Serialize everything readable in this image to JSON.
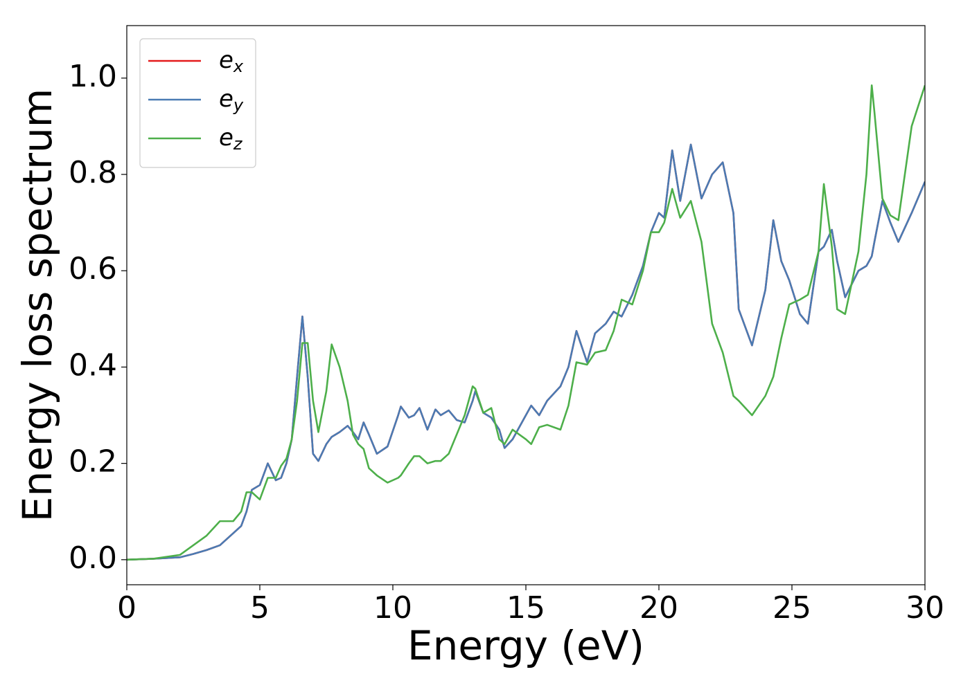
{
  "chart_data": {
    "type": "line",
    "xlabel": "Energy (eV)",
    "ylabel": "Energy loss spectrum",
    "x": [
      0,
      1,
      2,
      2.5,
      3,
      3.5,
      4,
      4.3,
      4.5,
      4.7,
      5.0,
      5.3,
      5.6,
      5.8,
      6.0,
      6.2,
      6.4,
      6.6,
      6.8,
      7.0,
      7.2,
      7.5,
      7.7,
      8.0,
      8.3,
      8.5,
      8.7,
      8.9,
      9.1,
      9.4,
      9.8,
      10.2,
      10.3,
      10.6,
      10.8,
      11.0,
      11.3,
      11.6,
      11.8,
      12.1,
      12.4,
      12.7,
      13.0,
      13.1,
      13.4,
      13.7,
      14.0,
      14.2,
      14.5,
      15.0,
      15.2,
      15.5,
      15.8,
      16.3,
      16.6,
      16.9,
      17.3,
      17.6,
      18.0,
      18.3,
      18.6,
      19.0,
      19.4,
      19.7,
      20.0,
      20.2,
      20.5,
      20.8,
      21.2,
      21.6,
      22.0,
      22.4,
      22.8,
      23.0,
      23.5,
      24.0,
      24.3,
      24.6,
      24.9,
      25.3,
      25.6,
      26.0,
      26.2,
      26.5,
      26.7,
      27.0,
      27.5,
      27.8,
      28.0,
      28.1,
      28.4,
      28.7,
      29.0,
      29.5,
      30.0
    ],
    "series": [
      {
        "name": "e_x",
        "color": "#e41a1c",
        "values": [
          0,
          0.002,
          0.005,
          0.012,
          0.02,
          0.03,
          0.055,
          0.07,
          0.1,
          0.145,
          0.155,
          0.2,
          0.165,
          0.17,
          0.2,
          0.25,
          0.38,
          0.505,
          0.38,
          0.22,
          0.205,
          0.24,
          0.255,
          0.265,
          0.278,
          0.265,
          0.25,
          0.285,
          0.26,
          0.22,
          0.235,
          0.3,
          0.318,
          0.295,
          0.3,
          0.315,
          0.27,
          0.312,
          0.3,
          0.31,
          0.29,
          0.285,
          0.33,
          0.35,
          0.305,
          0.295,
          0.27,
          0.232,
          0.25,
          0.3,
          0.32,
          0.3,
          0.33,
          0.36,
          0.4,
          0.475,
          0.41,
          0.47,
          0.49,
          0.515,
          0.505,
          0.55,
          0.61,
          0.68,
          0.72,
          0.71,
          0.85,
          0.745,
          0.862,
          0.75,
          0.8,
          0.825,
          0.72,
          0.52,
          0.445,
          0.56,
          0.705,
          0.62,
          0.58,
          0.51,
          0.49,
          0.64,
          0.65,
          0.685,
          0.62,
          0.545,
          0.6,
          0.61,
          0.63,
          0.66,
          0.745,
          0.7,
          0.66,
          0.72,
          0.785
        ]
      },
      {
        "name": "e_y",
        "color": "#4a7bb3",
        "values": [
          0,
          0.002,
          0.005,
          0.012,
          0.02,
          0.03,
          0.055,
          0.07,
          0.1,
          0.145,
          0.155,
          0.2,
          0.165,
          0.17,
          0.2,
          0.25,
          0.38,
          0.505,
          0.38,
          0.22,
          0.205,
          0.24,
          0.255,
          0.265,
          0.278,
          0.265,
          0.25,
          0.285,
          0.26,
          0.22,
          0.235,
          0.3,
          0.318,
          0.295,
          0.3,
          0.315,
          0.27,
          0.312,
          0.3,
          0.31,
          0.29,
          0.285,
          0.33,
          0.35,
          0.305,
          0.295,
          0.27,
          0.232,
          0.25,
          0.3,
          0.32,
          0.3,
          0.33,
          0.36,
          0.4,
          0.475,
          0.41,
          0.47,
          0.49,
          0.515,
          0.505,
          0.55,
          0.61,
          0.68,
          0.72,
          0.71,
          0.85,
          0.745,
          0.862,
          0.75,
          0.8,
          0.825,
          0.72,
          0.52,
          0.445,
          0.56,
          0.705,
          0.62,
          0.58,
          0.51,
          0.49,
          0.64,
          0.65,
          0.685,
          0.62,
          0.545,
          0.6,
          0.61,
          0.63,
          0.66,
          0.745,
          0.7,
          0.66,
          0.72,
          0.785
        ]
      },
      {
        "name": "e_z",
        "color": "#4daf4a",
        "values": [
          0,
          0.002,
          0.01,
          0.03,
          0.05,
          0.08,
          0.08,
          0.1,
          0.14,
          0.14,
          0.125,
          0.17,
          0.17,
          0.195,
          0.21,
          0.25,
          0.33,
          0.45,
          0.45,
          0.33,
          0.265,
          0.35,
          0.447,
          0.4,
          0.33,
          0.26,
          0.24,
          0.23,
          0.19,
          0.175,
          0.16,
          0.17,
          0.175,
          0.2,
          0.215,
          0.215,
          0.2,
          0.205,
          0.205,
          0.22,
          0.26,
          0.3,
          0.36,
          0.355,
          0.305,
          0.315,
          0.25,
          0.24,
          0.27,
          0.25,
          0.24,
          0.275,
          0.28,
          0.27,
          0.32,
          0.41,
          0.405,
          0.43,
          0.435,
          0.475,
          0.54,
          0.53,
          0.6,
          0.68,
          0.68,
          0.7,
          0.77,
          0.71,
          0.745,
          0.66,
          0.49,
          0.43,
          0.34,
          0.33,
          0.3,
          0.34,
          0.38,
          0.46,
          0.53,
          0.54,
          0.55,
          0.64,
          0.78,
          0.65,
          0.52,
          0.51,
          0.64,
          0.8,
          0.985,
          0.93,
          0.75,
          0.715,
          0.705,
          0.9,
          0.985
        ]
      }
    ],
    "xlim": [
      0,
      30
    ],
    "xticks": [
      0,
      5,
      10,
      15,
      20,
      25,
      30
    ],
    "ylim": [
      -0.052,
      1.109
    ],
    "yticks": [
      {
        "value": 0,
        "label": "0.0"
      },
      0.2,
      0.4,
      0.6,
      0.8,
      {
        "value": 1,
        "label": "1.0"
      }
    ],
    "grid": false,
    "legend": "upper left"
  }
}
